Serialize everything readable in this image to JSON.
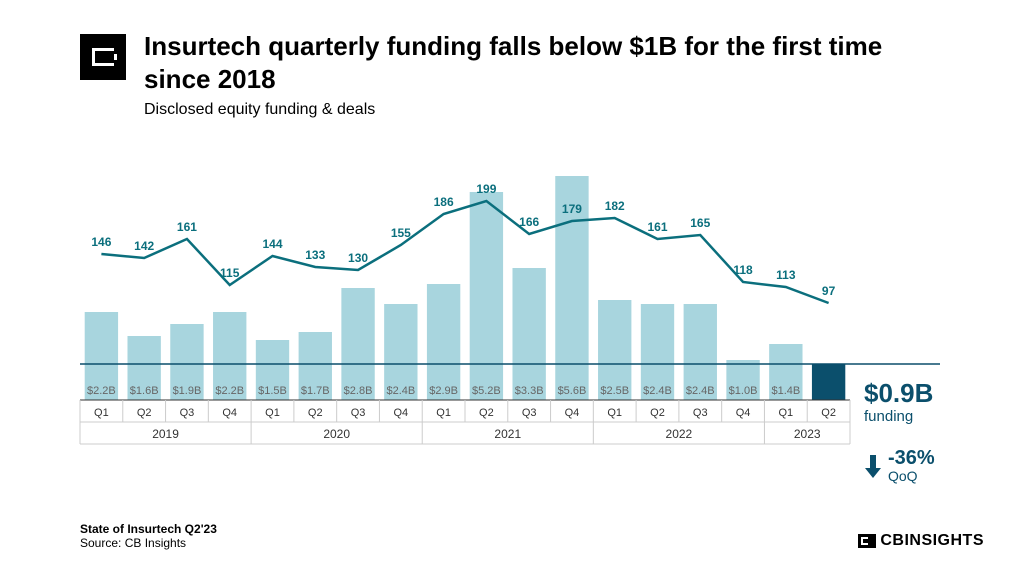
{
  "header": {
    "title": "Insurtech quarterly funding falls below $1B for the first time since 2018",
    "subtitle": "Disclosed equity funding & deals"
  },
  "chart": {
    "type": "bar+line",
    "background_color": "#ffffff",
    "bar_color": "#a8d5de",
    "bar_highlight_color": "#0b4f6c",
    "line_color": "#0b6f7d",
    "baseline_color": "#0b4f6c",
    "axis_color": "#333333",
    "year_divider_color": "#cccccc",
    "bar_label_color": "#666666",
    "line_label_color": "#0b6f7d",
    "quarter_label_color": "#333333",
    "year_label_color": "#333333",
    "bar_label_fontsize": 11,
    "line_label_fontsize": 12,
    "quarter_fontsize": 11,
    "year_fontsize": 12,
    "bar_width_ratio": 0.78,
    "y_max_funding": 6.0,
    "y_max_deals": 240,
    "line_width": 2.5,
    "years": [
      {
        "label": "2019",
        "quarters": [
          "Q1",
          "Q2",
          "Q3",
          "Q4"
        ]
      },
      {
        "label": "2020",
        "quarters": [
          "Q1",
          "Q2",
          "Q3",
          "Q4"
        ]
      },
      {
        "label": "2021",
        "quarters": [
          "Q1",
          "Q2",
          "Q3",
          "Q4"
        ]
      },
      {
        "label": "2022",
        "quarters": [
          "Q1",
          "Q2",
          "Q3",
          "Q4"
        ]
      },
      {
        "label": "2023",
        "quarters": [
          "Q1",
          "Q2"
        ]
      }
    ],
    "funding": [
      2.2,
      1.6,
      1.9,
      2.2,
      1.5,
      1.7,
      2.8,
      2.4,
      2.9,
      5.2,
      3.3,
      5.6,
      2.5,
      2.4,
      2.4,
      1.0,
      1.4,
      0.9
    ],
    "funding_labels": [
      "$2.2B",
      "$1.6B",
      "$1.9B",
      "$2.2B",
      "$1.5B",
      "$1.7B",
      "$2.8B",
      "$2.4B",
      "$2.9B",
      "$5.2B",
      "$3.3B",
      "$5.6B",
      "$2.5B",
      "$2.4B",
      "$2.4B",
      "$1.0B",
      "$1.4B",
      ""
    ],
    "deals": [
      146,
      142,
      161,
      115,
      144,
      133,
      130,
      155,
      186,
      199,
      166,
      179,
      182,
      161,
      165,
      118,
      113,
      97
    ],
    "highlight_index": 17
  },
  "callout1": {
    "value": "$0.9B",
    "label": "funding",
    "color": "#0b4f6c"
  },
  "callout2": {
    "value": "-36%",
    "label": "QoQ",
    "color": "#0b4f6c",
    "arrow_color": "#0b4f6c"
  },
  "footer": {
    "report": "State of Insurtech Q2'23",
    "source": "Source: CB Insights"
  },
  "brand": {
    "text": "CBINSIGHTS"
  }
}
